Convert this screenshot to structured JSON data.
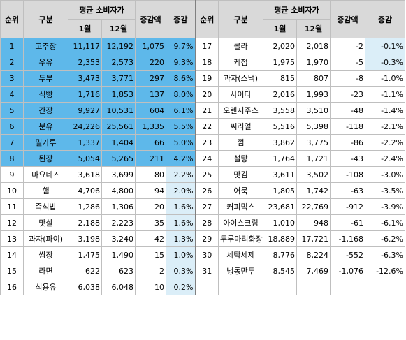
{
  "headers": {
    "rank": "순위",
    "category": "구분",
    "avg_price": "평균 소비자가",
    "jan": "1월",
    "dec": "12월",
    "change_amt": "증감액",
    "change_pct": "증감"
  },
  "left_rows": [
    {
      "rank": "1",
      "name": "고추장",
      "jan": "11,117",
      "dec": "12,192",
      "diff": "1,075",
      "pct": "9.7%"
    },
    {
      "rank": "2",
      "name": "우유",
      "jan": "2,353",
      "dec": "2,573",
      "diff": "220",
      "pct": "9.3%"
    },
    {
      "rank": "3",
      "name": "두부",
      "jan": "3,473",
      "dec": "3,771",
      "diff": "297",
      "pct": "8.6%"
    },
    {
      "rank": "4",
      "name": "식빵",
      "jan": "1,716",
      "dec": "1,853",
      "diff": "137",
      "pct": "8.0%"
    },
    {
      "rank": "5",
      "name": "간장",
      "jan": "9,927",
      "dec": "10,531",
      "diff": "604",
      "pct": "6.1%"
    },
    {
      "rank": "6",
      "name": "분유",
      "jan": "24,226",
      "dec": "25,561",
      "diff": "1,335",
      "pct": "5.5%"
    },
    {
      "rank": "7",
      "name": "밀가루",
      "jan": "1,337",
      "dec": "1,404",
      "diff": "66",
      "pct": "5.0%"
    },
    {
      "rank": "8",
      "name": "된장",
      "jan": "5,054",
      "dec": "5,265",
      "diff": "211",
      "pct": "4.2%"
    },
    {
      "rank": "9",
      "name": "마요네즈",
      "jan": "3,618",
      "dec": "3,699",
      "diff": "80",
      "pct": "2.2%"
    },
    {
      "rank": "10",
      "name": "햄",
      "jan": "4,706",
      "dec": "4,800",
      "diff": "94",
      "pct": "2.0%"
    },
    {
      "rank": "11",
      "name": "즉석밥",
      "jan": "1,286",
      "dec": "1,306",
      "diff": "20",
      "pct": "1.6%"
    },
    {
      "rank": "12",
      "name": "맛살",
      "jan": "2,188",
      "dec": "2,223",
      "diff": "35",
      "pct": "1.6%"
    },
    {
      "rank": "13",
      "name": "과자(파이)",
      "jan": "3,198",
      "dec": "3,240",
      "diff": "42",
      "pct": "1.3%"
    },
    {
      "rank": "14",
      "name": "쌈장",
      "jan": "1,475",
      "dec": "1,490",
      "diff": "15",
      "pct": "1.0%"
    },
    {
      "rank": "15",
      "name": "라면",
      "jan": "622",
      "dec": "623",
      "diff": "2",
      "pct": "0.3%"
    },
    {
      "rank": "16",
      "name": "식용유",
      "jan": "6,038",
      "dec": "6,048",
      "diff": "10",
      "pct": "0.2%"
    }
  ],
  "right_rows": [
    {
      "rank": "17",
      "name": "콜라",
      "jan": "2,020",
      "dec": "2,018",
      "diff": "-2",
      "pct": "-0.1%"
    },
    {
      "rank": "18",
      "name": "케첩",
      "jan": "1,975",
      "dec": "1,970",
      "diff": "-5",
      "pct": "-0.3%"
    },
    {
      "rank": "19",
      "name": "과자(스낵)",
      "jan": "815",
      "dec": "807",
      "diff": "-8",
      "pct": "-1.0%"
    },
    {
      "rank": "20",
      "name": "사이다",
      "jan": "2,016",
      "dec": "1,993",
      "diff": "-23",
      "pct": "-1.1%"
    },
    {
      "rank": "21",
      "name": "오렌지주스",
      "jan": "3,558",
      "dec": "3,510",
      "diff": "-48",
      "pct": "-1.4%"
    },
    {
      "rank": "22",
      "name": "씨리얼",
      "jan": "5,516",
      "dec": "5,398",
      "diff": "-118",
      "pct": "-2.1%"
    },
    {
      "rank": "23",
      "name": "껌",
      "jan": "3,862",
      "dec": "3,775",
      "diff": "-86",
      "pct": "-2.2%"
    },
    {
      "rank": "24",
      "name": "설탕",
      "jan": "1,764",
      "dec": "1,721",
      "diff": "-43",
      "pct": "-2.4%"
    },
    {
      "rank": "25",
      "name": "맛김",
      "jan": "3,611",
      "dec": "3,502",
      "diff": "-108",
      "pct": "-3.0%"
    },
    {
      "rank": "26",
      "name": "어묵",
      "jan": "1,805",
      "dec": "1,742",
      "diff": "-63",
      "pct": "-3.5%"
    },
    {
      "rank": "27",
      "name": "커피믹스",
      "jan": "23,681",
      "dec": "22,769",
      "diff": "-912",
      "pct": "-3.9%"
    },
    {
      "rank": "28",
      "name": "아이스크림",
      "jan": "1,010",
      "dec": "948",
      "diff": "-61",
      "pct": "-6.1%"
    },
    {
      "rank": "29",
      "name": "두루마리화장지",
      "jan": "18,889",
      "dec": "17,721",
      "diff": "-1,168",
      "pct": "-6.2%"
    },
    {
      "rank": "30",
      "name": "세탁세제",
      "jan": "8,776",
      "dec": "8,224",
      "diff": "-552",
      "pct": "-6.3%"
    },
    {
      "rank": "31",
      "name": "냉동만두",
      "jan": "8,545",
      "dec": "7,469",
      "diff": "-1,076",
      "pct": "-12.6%"
    },
    {
      "rank": "",
      "name": "",
      "jan": "",
      "dec": "",
      "diff": "",
      "pct": ""
    }
  ],
  "colors": {
    "highlight": "#5eb8ea",
    "light": "#dbeef8",
    "header": "#d9d9d9"
  }
}
